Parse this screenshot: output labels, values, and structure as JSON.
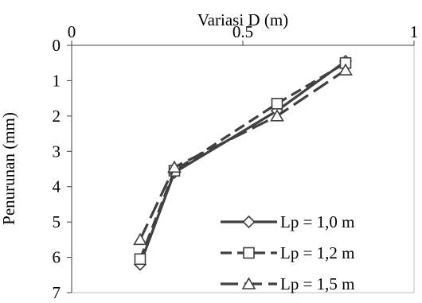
{
  "chart_data": {
    "type": "line",
    "xlabel": "Variasi D (m)",
    "ylabel": "Penurunan (mm)",
    "xlim": [
      0,
      1
    ],
    "ylim": [
      0,
      7
    ],
    "x_axis_position": "top",
    "y_axis_inverted": true,
    "x_ticks": [
      "0",
      "0.5",
      "1"
    ],
    "y_ticks": [
      "0",
      "1",
      "2",
      "3",
      "4",
      "5",
      "6",
      "7"
    ],
    "grid": false,
    "legend_position": "bottom-right",
    "series": [
      {
        "name": "Lp = 1,0 m",
        "marker": "diamond",
        "dash": "solid",
        "color": "#404040",
        "x": [
          0.2,
          0.3,
          0.6,
          0.8
        ],
        "y": [
          6.2,
          3.6,
          1.85,
          0.45
        ]
      },
      {
        "name": "Lp = 1,2 m",
        "marker": "square",
        "dash": "dashed",
        "color": "#404040",
        "x": [
          0.2,
          0.3,
          0.6,
          0.8
        ],
        "y": [
          6.05,
          3.55,
          1.65,
          0.5
        ]
      },
      {
        "name": "Lp = 1,5 m",
        "marker": "triangle",
        "dash": "longdash",
        "color": "#404040",
        "x": [
          0.2,
          0.3,
          0.6,
          0.8
        ],
        "y": [
          5.5,
          3.45,
          2.0,
          0.7
        ]
      }
    ]
  }
}
